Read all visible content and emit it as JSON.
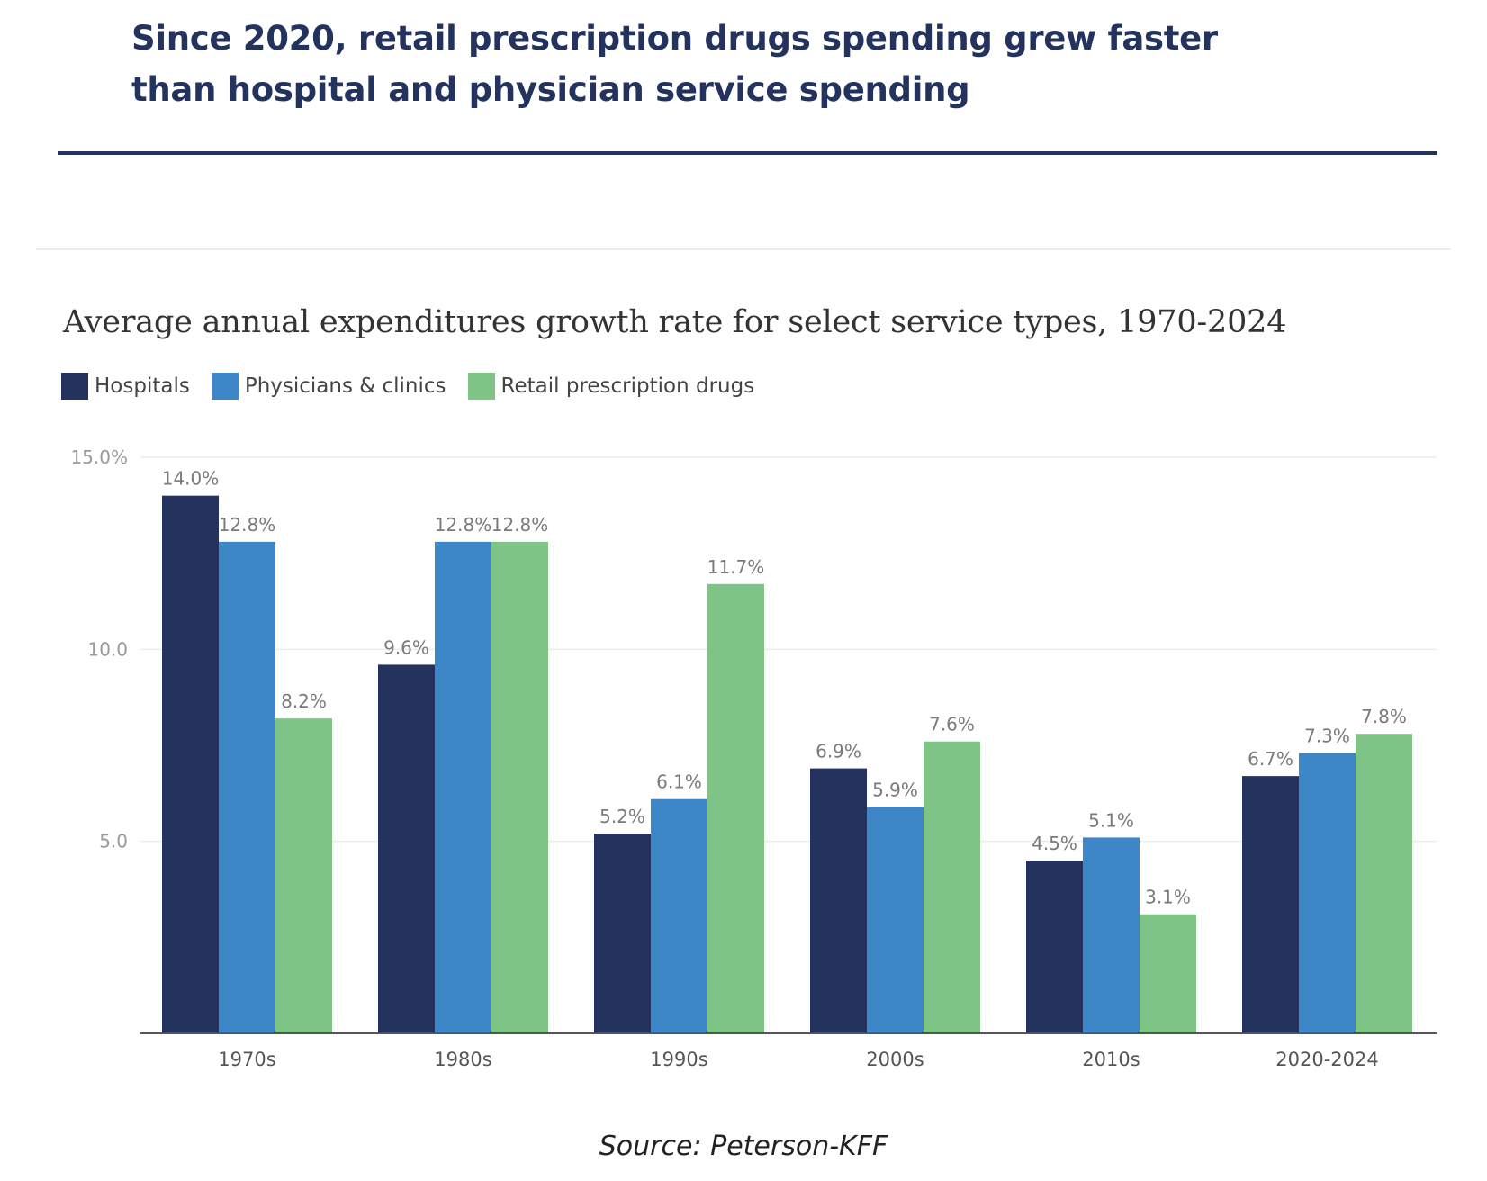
{
  "headline": "Since 2020, retail prescription drugs spending grew faster than hospital and physician service spending",
  "source": "Source: Peterson-KFF",
  "colors": {
    "hospitals": "#24335e",
    "physicians": "#3d87c8",
    "drugs": "#7ec487",
    "headline": "#24335e"
  },
  "chart_data": {
    "type": "bar",
    "title": "Average annual expenditures growth rate for select service types, 1970-2024",
    "xlabel": "",
    "ylabel": "",
    "ylim": [
      0,
      15
    ],
    "yticks": [
      {
        "value": 15,
        "label": "15.0%"
      },
      {
        "value": 10,
        "label": "10.0"
      },
      {
        "value": 5,
        "label": "5.0"
      }
    ],
    "grid": true,
    "legend_position": "top-left",
    "categories": [
      "1970s",
      "1980s",
      "1990s",
      "2000s",
      "2010s",
      "2020-2024"
    ],
    "series": [
      {
        "name": "Hospitals",
        "color": "#24335e",
        "values": [
          14.0,
          9.6,
          5.2,
          6.9,
          4.5,
          6.7
        ],
        "labels": [
          "14.0%",
          "9.6%",
          "5.2%",
          "6.9%",
          "4.5%",
          "6.7%"
        ]
      },
      {
        "name": "Physicians & clinics",
        "color": "#3d87c8",
        "values": [
          12.8,
          12.8,
          6.1,
          5.9,
          5.1,
          7.3
        ],
        "labels": [
          "12.8%",
          "12.8%",
          "6.1%",
          "5.9%",
          "5.1%",
          "7.3%"
        ]
      },
      {
        "name": "Retail prescription drugs",
        "color": "#7ec487",
        "values": [
          8.2,
          12.8,
          11.7,
          7.6,
          3.1,
          7.8
        ],
        "labels": [
          "8.2%",
          "12.8%",
          "11.7%",
          "7.6%",
          "3.1%",
          "7.8%"
        ]
      }
    ]
  }
}
